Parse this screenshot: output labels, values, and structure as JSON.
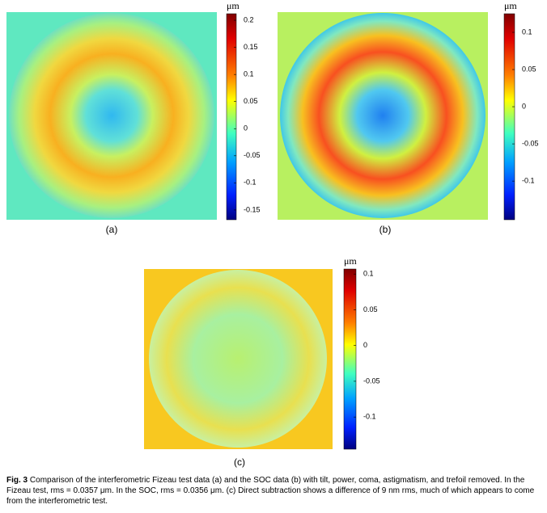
{
  "panels": [
    {
      "label": "(a)",
      "unit": "μm",
      "clim": [
        -0.168,
        0.212
      ],
      "cticks": [
        0.2,
        0.15,
        0.1,
        0.05,
        0,
        -0.05,
        -0.1,
        -0.15
      ]
    },
    {
      "label": "(b)",
      "unit": "μm",
      "clim": [
        -0.152,
        0.125
      ],
      "cticks": [
        0.1,
        0.05,
        0,
        -0.05,
        -0.1
      ]
    },
    {
      "label": "(c)",
      "unit": "μm",
      "clim": [
        -0.145,
        0.107
      ],
      "cticks": [
        0.1,
        0.05,
        0,
        -0.05,
        -0.1
      ]
    }
  ],
  "caption": {
    "label": "Fig. 3",
    "text": "Comparison of the interferometric Fizeau test data (a) and the SOC data (b) with tilt, power, coma, astigmatism, and trefoil removed. In the Fizeau test, rms = 0.0357 μm. In the SOC, rms = 0.0356 μm. (c) Direct subtraction shows a difference of 9 nm rms, much of which appears to come from the interferometric test."
  }
}
